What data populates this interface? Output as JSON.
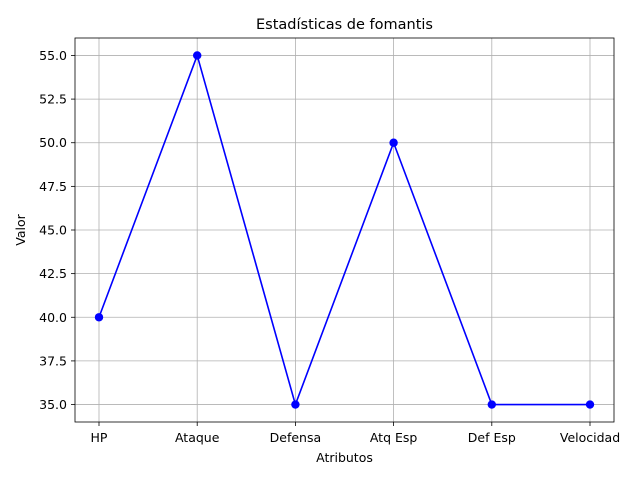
{
  "chart_data": {
    "type": "line",
    "title": "Estadísticas de fomantis",
    "xlabel": "Atributos",
    "ylabel": "Valor",
    "categories": [
      "HP",
      "Ataque",
      "Defensa",
      "Atq Esp",
      "Def Esp",
      "Velocidad"
    ],
    "series": [
      {
        "values": [
          40,
          55,
          35,
          50,
          35,
          35
        ],
        "color": "#0000ff",
        "marker": "circle"
      }
    ],
    "ylim": [
      34.0,
      56.0
    ],
    "yticks": [
      35.0,
      37.5,
      40.0,
      42.5,
      45.0,
      47.5,
      50.0,
      52.5,
      55.0
    ],
    "ytick_labels": [
      "35.0",
      "37.5",
      "40.0",
      "42.5",
      "45.0",
      "47.5",
      "50.0",
      "52.5",
      "55.0"
    ],
    "grid": true,
    "legend": false
  }
}
